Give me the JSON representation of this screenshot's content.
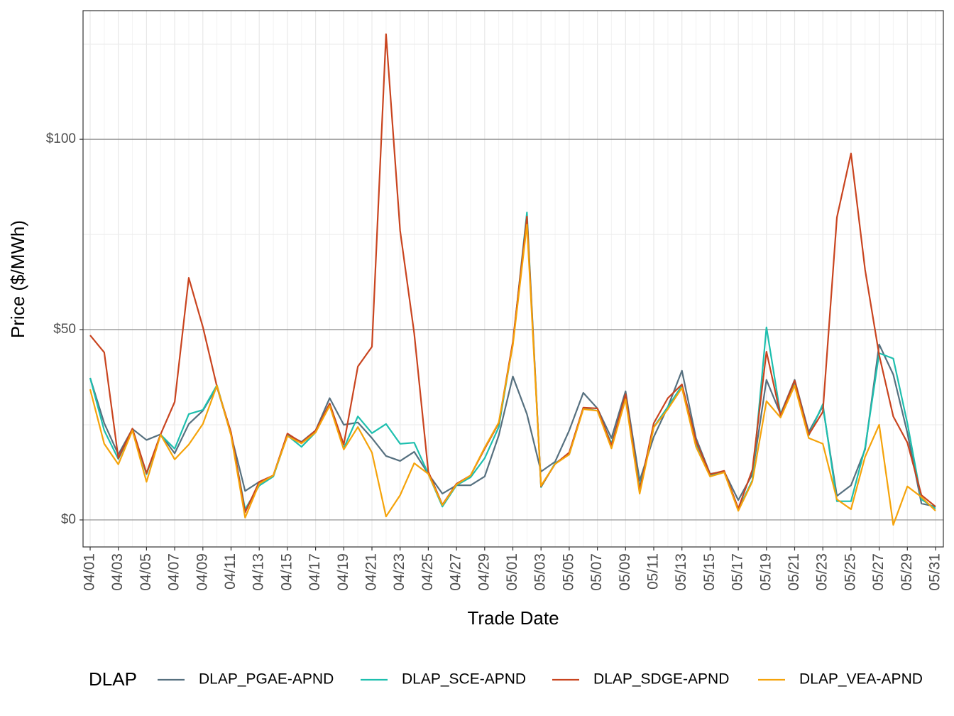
{
  "chart_data": {
    "type": "line",
    "x_label": "Trade Date",
    "y_label": "Price ($/MWh)",
    "legend_title": "DLAP",
    "legend_position": "bottom",
    "categories": [
      "04/01",
      null,
      "04/03",
      null,
      "04/05",
      null,
      "04/07",
      null,
      "04/09",
      null,
      "04/11",
      null,
      "04/13",
      null,
      "04/15",
      null,
      "04/17",
      null,
      "04/19",
      null,
      "04/21",
      null,
      "04/23",
      null,
      "04/25",
      null,
      "04/27",
      null,
      "04/29",
      null,
      "05/01",
      null,
      "05/03",
      null,
      "05/05",
      null,
      "05/07",
      null,
      "05/09",
      null,
      "05/11",
      null,
      "05/13",
      null,
      "05/15",
      null,
      "05/17",
      null,
      "05/19",
      null,
      "05/21",
      null,
      "05/23",
      null,
      "05/25",
      null,
      "05/27",
      null,
      "05/29",
      null,
      "05/31"
    ],
    "series": [
      {
        "name": "DLAP_PGAE-APND",
        "color": "#56707f",
        "values": [
          37.3,
          25.4,
          17.2,
          23.9,
          21,
          22.5,
          17.5,
          25.2,
          28.7,
          35,
          22.4,
          7.6,
          10,
          11.6,
          22.4,
          20.5,
          23.5,
          32,
          25,
          25.6,
          21.5,
          16.8,
          15.5,
          17.9,
          12.1,
          6.9,
          9.1,
          9.1,
          11.4,
          22.2,
          37.7,
          27.8,
          12.7,
          15.3,
          23.5,
          33.4,
          29.3,
          21.5,
          33.8,
          10.3,
          21.8,
          29.7,
          39.2,
          21.5,
          12.1,
          12.7,
          5.2,
          12,
          36.8,
          27.8,
          36.8,
          23.1,
          29.9,
          6.3,
          9.1,
          18.5,
          46.1,
          38.2,
          22.9,
          4.3,
          3.5
        ]
      },
      {
        "name": "DLAP_SCE-APND",
        "color": "#1dbfae",
        "values": [
          37.3,
          23.5,
          16,
          23.7,
          12,
          22.4,
          18.7,
          27.8,
          28.9,
          35.4,
          22.4,
          2.8,
          9,
          11.4,
          22.2,
          19.2,
          23,
          30.4,
          18.8,
          27.2,
          22.8,
          25.2,
          20,
          20.3,
          12.1,
          3.5,
          9.1,
          11.2,
          16.2,
          24.4,
          46.3,
          80.8,
          8.6,
          14.9,
          17.2,
          29.3,
          28.7,
          20.1,
          32.1,
          8.6,
          24.4,
          29.7,
          35.3,
          19.8,
          11.8,
          12.7,
          2.8,
          10.4,
          50.6,
          27.6,
          36.2,
          22.2,
          30.4,
          4.9,
          4.9,
          19,
          43.8,
          42.4,
          25.4,
          5.4,
          3
        ]
      },
      {
        "name": "DLAP_SDGE-APND",
        "color": "#c9441f",
        "values": [
          48.5,
          44,
          16.2,
          24,
          12.3,
          22.5,
          31,
          63.6,
          50.7,
          35,
          23,
          2,
          10,
          11.7,
          22.7,
          20.3,
          23.5,
          30.6,
          19.8,
          40.3,
          45.5,
          127.6,
          76,
          49,
          12.7,
          4,
          9.5,
          11.7,
          18.7,
          25.4,
          46.8,
          79.7,
          8.8,
          14.7,
          17.7,
          29.5,
          29.3,
          19.6,
          33,
          7.8,
          25.4,
          32,
          35.6,
          20.7,
          12,
          12.9,
          3,
          13.2,
          44.2,
          27.4,
          36.6,
          22.4,
          28.4,
          79.5,
          96.3,
          65.7,
          43.3,
          27.2,
          20.3,
          6.5,
          3.5
        ]
      },
      {
        "name": "DLAP_VEA-APND",
        "color": "#f5a30a",
        "values": [
          34.3,
          20,
          14.6,
          23.5,
          10,
          22.4,
          15.9,
          19.8,
          25.2,
          35.3,
          22.2,
          0.6,
          9.5,
          11.7,
          22,
          20.1,
          23,
          30,
          18.5,
          24.4,
          17.7,
          0.9,
          6.5,
          14.9,
          12.1,
          3.9,
          9.3,
          11.7,
          19,
          25.6,
          45.9,
          77.6,
          9,
          14.7,
          17.2,
          29.1,
          28.7,
          18.8,
          31.7,
          6.9,
          24.3,
          29.1,
          34.7,
          19.2,
          11.4,
          12.5,
          2.4,
          10.1,
          31.2,
          26.9,
          35.3,
          21.5,
          20,
          5.4,
          2.8,
          16.6,
          25,
          -1.3,
          8.8,
          6,
          2.4
        ]
      }
    ],
    "ylim": [
      -7.1,
      133.8
    ],
    "yticks": [
      {
        "value": 0,
        "label": "$0"
      },
      {
        "value": 50,
        "label": "$50"
      },
      {
        "value": 100,
        "label": "$100"
      }
    ],
    "y_minor_grid": [
      25,
      75,
      125
    ],
    "grid": true
  }
}
